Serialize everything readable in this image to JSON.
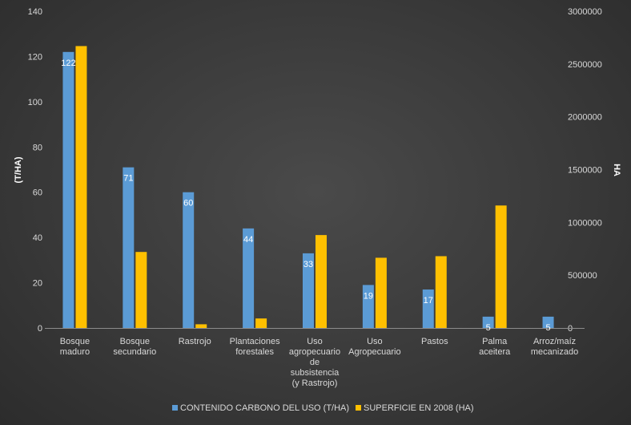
{
  "chart_data": {
    "type": "bar",
    "categories": [
      [
        "Bosque",
        "maduro"
      ],
      [
        "Bosque",
        "secundario"
      ],
      [
        "Rastrojo"
      ],
      [
        "Plantaciones",
        "forestales"
      ],
      [
        "Uso",
        "agropecuario",
        "de",
        "subsistencia",
        "(y Rastrojo)"
      ],
      [
        "Uso",
        "Agropecuario"
      ],
      [
        "Pastos"
      ],
      [
        "Palma",
        "aceitera"
      ],
      [
        "Arroz/maíz",
        "mecanizado"
      ]
    ],
    "series": [
      {
        "name": "CONTENIDO CARBONO DEL USO (T/HA)",
        "axis": "left",
        "color": "#5b9bd5",
        "values": [
          122,
          71,
          60,
          44,
          33,
          19,
          17,
          5,
          5
        ],
        "data_labels": [
          "122",
          "71",
          "60",
          "44",
          "33",
          "19",
          "17",
          "5",
          "5"
        ]
      },
      {
        "name": "SUPERFICIE EN 2008 (HA)",
        "axis": "right",
        "color": "#ffc000",
        "values": [
          2670000,
          720000,
          35000,
          90000,
          880000,
          665000,
          680000,
          1160000,
          0
        ]
      }
    ],
    "y_left": {
      "label": "(T/HA)",
      "range": [
        0,
        140
      ],
      "ticks": [
        "0",
        "20",
        "40",
        "60",
        "80",
        "100",
        "120",
        "140"
      ]
    },
    "y_right": {
      "label": "HA",
      "range": [
        0,
        3000000
      ],
      "ticks": [
        "0",
        "500000",
        "1000000",
        "1500000",
        "2000000",
        "2500000",
        "3000000"
      ]
    },
    "grid": false,
    "legend_position": "bottom"
  }
}
